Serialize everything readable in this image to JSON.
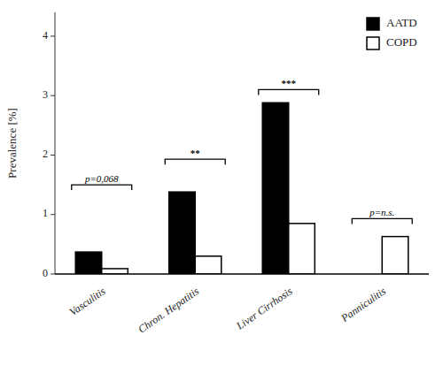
{
  "chart_data": {
    "type": "bar",
    "categories": [
      "Vasculitis",
      "Chron. Hepatitis",
      "Liver Cirrhosis",
      "Panniculitis"
    ],
    "series": [
      {
        "name": "AATD",
        "color": "#000000",
        "values": [
          0.37,
          1.38,
          2.88,
          0.0
        ]
      },
      {
        "name": "COPD",
        "color": "#ffffff",
        "values": [
          0.09,
          0.3,
          0.85,
          0.63
        ]
      }
    ],
    "y_label": "Prevalence [%]",
    "ylim": [
      0,
      4.4
    ],
    "yticks": [
      0,
      1,
      2,
      3,
      4
    ],
    "annotations": [
      {
        "text": "p=0,068",
        "y": 1.5
      },
      {
        "text": "**",
        "y": 1.93
      },
      {
        "text": "***",
        "y": 3.1
      },
      {
        "text": "p=n.s.",
        "y": 0.93
      }
    ],
    "legend": "upper right",
    "grid": false
  }
}
